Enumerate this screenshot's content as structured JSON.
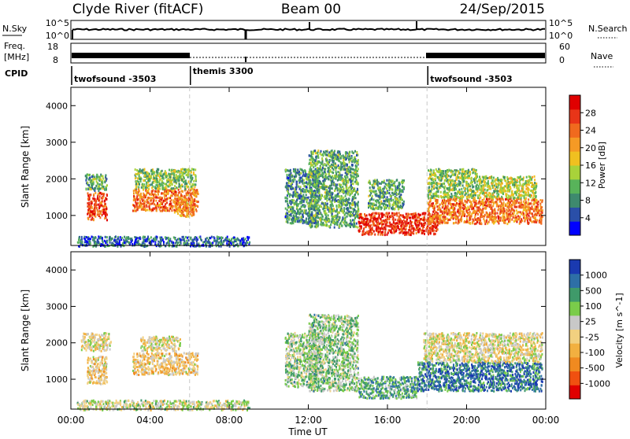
{
  "header": {
    "station": "Clyde River (fitACF)",
    "beam": "Beam 00",
    "date": "24/Sep/2015"
  },
  "summary_panels": {
    "nsky": {
      "label": "N.Sky",
      "right_label": "N.Search",
      "top_tick": "10^5",
      "bottom_tick": "10^0",
      "right_top_tick": "10^5",
      "right_bottom_tick": "10^0"
    },
    "freq": {
      "label_line1": "Freq.",
      "label_line2": "[MHz]",
      "left_top_tick": "18",
      "left_bottom_tick": "8",
      "right_label": "Nave",
      "right_top_tick": "60",
      "right_bottom_tick": "0"
    },
    "cpid": {
      "label": "CPID"
    }
  },
  "cpid_segments": [
    {
      "name": "twofsound -3503",
      "start_hour": 0,
      "end_hour": 6
    },
    {
      "name": "themis 3300",
      "start_hour": 6,
      "end_hour": 18
    },
    {
      "name": "twofsound -3503",
      "start_hour": 18,
      "end_hour": 24
    }
  ],
  "axes": {
    "x_label": "Time UT",
    "x_ticks": [
      "00:00",
      "04:00",
      "08:00",
      "12:00",
      "16:00",
      "20:00",
      "00:00"
    ],
    "x_range_hours": [
      0,
      24
    ],
    "y_label": "Slant Range [km]",
    "y_ticks": [
      "1000",
      "2000",
      "3000",
      "4000"
    ],
    "y_range_km": [
      180,
      4500
    ]
  },
  "colors": {
    "power_scale": [
      "#0000ff",
      "#2a4fa8",
      "#3e8a6e",
      "#58b35a",
      "#a8d23a",
      "#f0c020",
      "#f59a25",
      "#f06a1e",
      "#e83518",
      "#e00000"
    ],
    "velocity_scale": [
      "#e00000",
      "#f05010",
      "#f08a20",
      "#f2b040",
      "#f2d080",
      "#c8c8c8",
      "#7acc4a",
      "#3f9a6a",
      "#2e6fa6",
      "#1a3ab0"
    ]
  },
  "chart_data": [
    {
      "type": "heatmap",
      "title": "",
      "xlabel": "",
      "ylabel": "Slant Range [km]",
      "colorbar": {
        "label": "Power [dB]",
        "ticks": [
          "4",
          "8",
          "12",
          "16",
          "20",
          "24",
          "28"
        ],
        "range": [
          0,
          30
        ]
      },
      "regions": [
        {
          "t_start": 0.8,
          "t_end": 1.8,
          "r_min": 900,
          "r_max": 1650,
          "value": 24
        },
        {
          "t_start": 0.7,
          "t_end": 1.8,
          "r_min": 1700,
          "r_max": 2150,
          "value": 10
        },
        {
          "t_start": 3.1,
          "t_end": 6.4,
          "r_min": 1150,
          "r_max": 1750,
          "value": 22
        },
        {
          "t_start": 3.2,
          "t_end": 6.3,
          "r_min": 1750,
          "r_max": 2300,
          "value": 12
        },
        {
          "t_start": 5.2,
          "t_end": 6.2,
          "r_min": 1000,
          "r_max": 1500,
          "value": 20
        },
        {
          "t_start": 10.8,
          "t_end": 12.5,
          "r_min": 800,
          "r_max": 2300,
          "value": 8
        },
        {
          "t_start": 12.0,
          "t_end": 14.5,
          "r_min": 700,
          "r_max": 2800,
          "value": 10
        },
        {
          "t_start": 14.5,
          "t_end": 18.5,
          "r_min": 500,
          "r_max": 1100,
          "value": 26
        },
        {
          "t_start": 15.0,
          "t_end": 16.8,
          "r_min": 1200,
          "r_max": 2000,
          "value": 10
        },
        {
          "t_start": 18.0,
          "t_end": 23.8,
          "r_min": 800,
          "r_max": 1500,
          "value": 22
        },
        {
          "t_start": 18.0,
          "t_end": 20.5,
          "r_min": 1500,
          "r_max": 2300,
          "value": 12
        },
        {
          "t_start": 20.5,
          "t_end": 23.5,
          "r_min": 1500,
          "r_max": 2100,
          "value": 14
        },
        {
          "t_start": 0.3,
          "t_end": 9.0,
          "r_min": 180,
          "r_max": 450,
          "value": 6
        }
      ]
    },
    {
      "type": "heatmap",
      "title": "",
      "xlabel": "Time UT",
      "ylabel": "Slant Range [km]",
      "colorbar": {
        "label": "Velocity [m s^-1]",
        "ticks": [
          "-1000",
          "-500",
          "-100",
          "-25",
          "25",
          "100",
          "500",
          "1000"
        ],
        "range": [
          -1200,
          1200
        ]
      },
      "regions": [
        {
          "t_start": 0.8,
          "t_end": 1.8,
          "r_min": 900,
          "r_max": 1650,
          "value": -150
        },
        {
          "t_start": 0.5,
          "t_end": 2.0,
          "r_min": 1800,
          "r_max": 2300,
          "value": 0
        },
        {
          "t_start": 3.1,
          "t_end": 6.4,
          "r_min": 1150,
          "r_max": 1750,
          "value": -150
        },
        {
          "t_start": 3.5,
          "t_end": 5.5,
          "r_min": 1800,
          "r_max": 2200,
          "value": 0
        },
        {
          "t_start": 10.8,
          "t_end": 12.5,
          "r_min": 800,
          "r_max": 2300,
          "value": 300
        },
        {
          "t_start": 12.0,
          "t_end": 14.5,
          "r_min": 700,
          "r_max": 2800,
          "value": 300
        },
        {
          "t_start": 14.5,
          "t_end": 17.5,
          "r_min": 500,
          "r_max": 1100,
          "value": 500
        },
        {
          "t_start": 17.5,
          "t_end": 23.8,
          "r_min": 700,
          "r_max": 1500,
          "value": 800
        },
        {
          "t_start": 17.8,
          "t_end": 23.8,
          "r_min": 1500,
          "r_max": 2300,
          "value": 0
        },
        {
          "t_start": 0.3,
          "t_end": 9.0,
          "r_min": 180,
          "r_max": 450,
          "value": 120
        }
      ]
    }
  ]
}
